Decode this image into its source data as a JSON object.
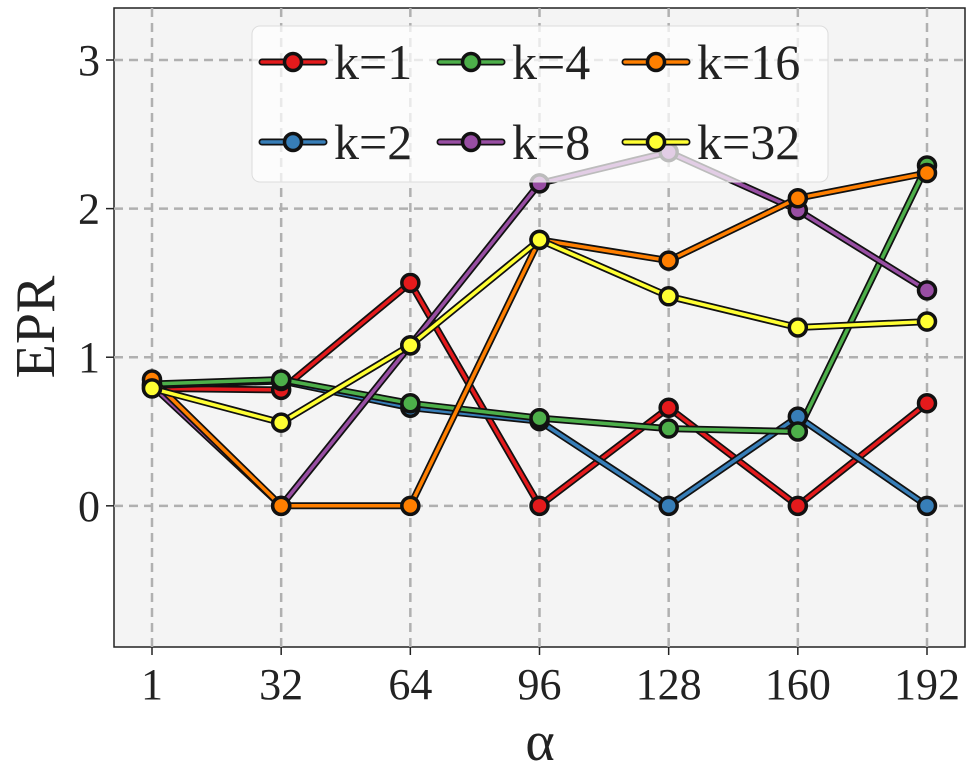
{
  "chart_data": {
    "type": "line",
    "xlabel": "α",
    "ylabel": "EPR",
    "x": [
      "1",
      "32",
      "64",
      "96",
      "128",
      "160",
      "192"
    ],
    "ylim": [
      -0.95,
      3.35
    ],
    "yticks": [
      0,
      1,
      2,
      3
    ],
    "grid": true,
    "legend_position": "top-center",
    "series": [
      {
        "name": "k=1",
        "color": "#e41a1c",
        "values": [
          0.79,
          0.78,
          1.5,
          0.0,
          0.66,
          0.0,
          0.69
        ]
      },
      {
        "name": "k=2",
        "color": "#377eb8",
        "values": [
          0.81,
          0.84,
          0.66,
          0.57,
          0.0,
          0.6,
          0.0
        ]
      },
      {
        "name": "k=4",
        "color": "#4daf4a",
        "values": [
          0.82,
          0.85,
          0.69,
          0.59,
          0.52,
          0.5,
          2.29
        ]
      },
      {
        "name": "k=8",
        "color": "#984ea3",
        "values": [
          0.81,
          0.0,
          1.08,
          2.17,
          2.38,
          1.99,
          1.45
        ]
      },
      {
        "name": "k=16",
        "color": "#ff7f00",
        "values": [
          0.85,
          0.0,
          0.0,
          1.79,
          1.65,
          2.07,
          2.24
        ]
      },
      {
        "name": "k=32",
        "color": "#ffff33",
        "values": [
          0.79,
          0.56,
          1.08,
          1.79,
          1.41,
          1.2,
          1.24
        ]
      }
    ]
  }
}
